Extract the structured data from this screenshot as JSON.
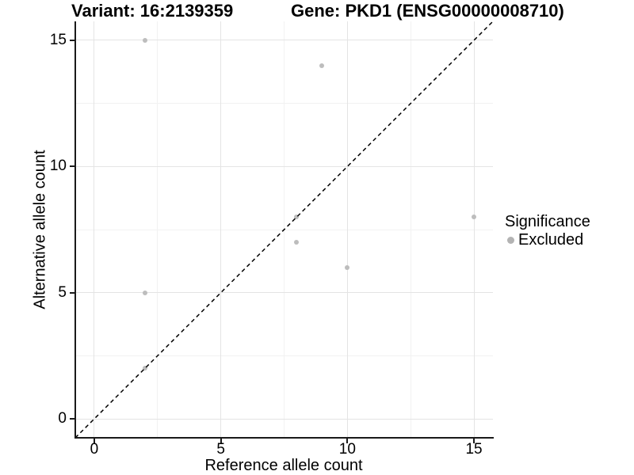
{
  "titles": {
    "variant": "Variant: 16:2139359",
    "gene": "Gene: PKD1 (ENSG00000008710)"
  },
  "axes": {
    "x": {
      "label": "Reference allele count",
      "major_ticks": [
        0,
        5,
        10,
        15
      ],
      "minor_ticks": [
        2.5,
        7.5,
        12.5
      ],
      "domain": [
        -0.75,
        15.75
      ]
    },
    "y": {
      "label": "Alternative allele count",
      "major_ticks": [
        0,
        5,
        10,
        15
      ],
      "minor_ticks": [
        2.5,
        7.5,
        12.5
      ],
      "domain": [
        -0.75,
        15.75
      ]
    }
  },
  "legend": {
    "title": "Significance",
    "items": [
      {
        "label": "Excluded",
        "color": "#b3b3b3"
      }
    ]
  },
  "colors": {
    "point": "#bdbdbd",
    "axis": "#1a1a1a",
    "grid_major": "#e4e4e4",
    "grid_minor": "#f2f2f2",
    "reference_line": "#000000"
  },
  "chart_data": {
    "type": "scatter",
    "title": "Variant: 16:2139359 | Gene: PKD1 (ENSG00000008710)",
    "xlabel": "Reference allele count",
    "ylabel": "Alternative allele count",
    "xlim": [
      -0.75,
      15.75
    ],
    "ylim": [
      -0.75,
      15.75
    ],
    "x_ticks": [
      0,
      5,
      10,
      15
    ],
    "y_ticks": [
      0,
      5,
      10,
      15
    ],
    "grid": "major-and-minor",
    "legend_position": "right",
    "series": [
      {
        "name": "Excluded",
        "color": "#bdbdbd",
        "points": [
          [
            2,
            15
          ],
          [
            9,
            14
          ],
          [
            15,
            8
          ],
          [
            8,
            8
          ],
          [
            8,
            7
          ],
          [
            10,
            6
          ],
          [
            2,
            5
          ],
          [
            2,
            2
          ]
        ]
      }
    ],
    "reference_line": {
      "type": "identity-y-equals-x",
      "style": "dashed",
      "color": "#000000",
      "dash": [
        5,
        4
      ]
    }
  }
}
